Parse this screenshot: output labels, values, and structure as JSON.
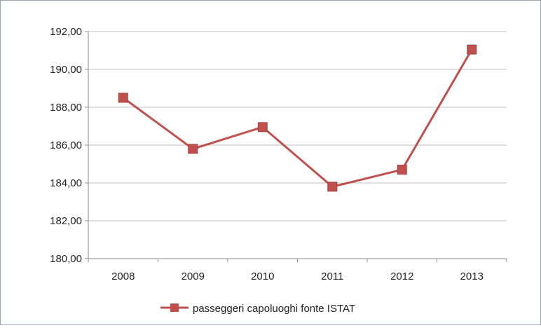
{
  "chart_data": {
    "type": "line",
    "categories": [
      "2008",
      "2009",
      "2010",
      "2011",
      "2012",
      "2013"
    ],
    "series": [
      {
        "name": "passeggeri capoluoghi fonte ISTAT",
        "values": [
          188.5,
          185.8,
          186.95,
          183.8,
          184.7,
          191.05
        ],
        "color": "#c0504d",
        "marker": "square"
      }
    ],
    "y_tick_labels": [
      "180,00",
      "182,00",
      "184,00",
      "186,00",
      "188,00",
      "190,00",
      "192,00"
    ],
    "ylim": [
      180,
      192
    ],
    "y_step": 2,
    "grid": true,
    "gridline_color": "#bfbfbf",
    "legend_position": "bottom"
  }
}
